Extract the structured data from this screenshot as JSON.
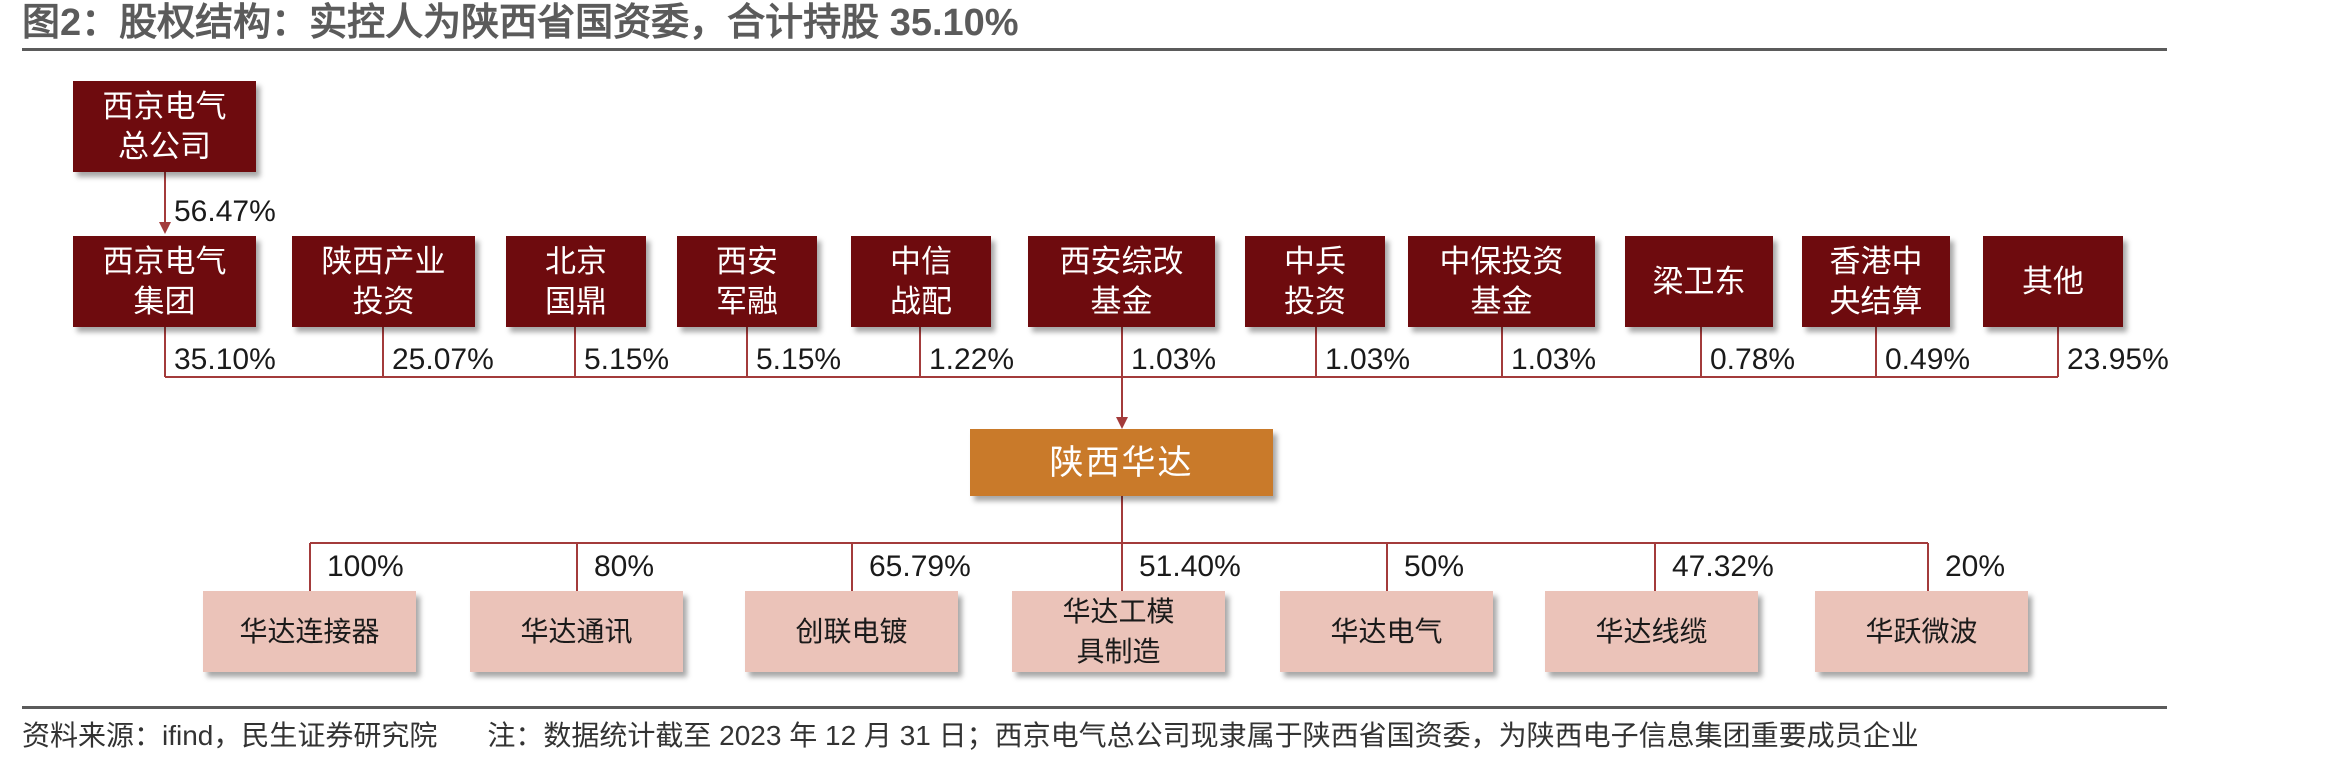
{
  "title": "图2：股权结构：实控人为陕西省国资委，合计持股 35.10%",
  "top_parent": {
    "line1": "西京电气",
    "line2": "总公司",
    "pct": "56.47%"
  },
  "shareholders": [
    {
      "line1": "西京电气",
      "line2": "集团",
      "pct": "35.10%"
    },
    {
      "line1": "陕西产业",
      "line2": "投资",
      "pct": "25.07%"
    },
    {
      "line1": "北京",
      "line2": "国鼎",
      "pct": "5.15%"
    },
    {
      "line1": "西安",
      "line2": "军融",
      "pct": "5.15%"
    },
    {
      "line1": "中信",
      "line2": "战配",
      "pct": "1.22%"
    },
    {
      "line1": "西安综改",
      "line2": "基金",
      "pct": "1.03%"
    },
    {
      "line1": "中兵",
      "line2": "投资",
      "pct": "1.03%"
    },
    {
      "line1": "中保投资",
      "line2": "基金",
      "pct": "1.03%"
    },
    {
      "line1": "梁卫东",
      "line2": "",
      "pct": "0.78%"
    },
    {
      "line1": "香港中",
      "line2": "央结算",
      "pct": "0.49%"
    },
    {
      "line1": "其他",
      "line2": "",
      "pct": "23.95%"
    }
  ],
  "company": "陕西华达",
  "subsidiaries": [
    {
      "line1": "华达连接器",
      "line2": "",
      "pct": "100%"
    },
    {
      "line1": "华达通讯",
      "line2": "",
      "pct": "80%"
    },
    {
      "line1": "创联电镀",
      "line2": "",
      "pct": "65.79%"
    },
    {
      "line1": "华达工模",
      "line2": "具制造",
      "pct": "51.40%"
    },
    {
      "line1": "华达电气",
      "line2": "",
      "pct": "50%"
    },
    {
      "line1": "华达线缆",
      "line2": "",
      "pct": "47.32%"
    },
    {
      "line1": "华跃微波",
      "line2": "",
      "pct": "20%"
    }
  ],
  "footer": {
    "source": "资料来源：ifind，民生证券研究院",
    "note": "注：数据统计截至 2023 年 12 月 31 日；西京电气总公司现隶属于陕西省国资委，为陕西电子信息集团重要成员企业"
  },
  "colors": {
    "shareholder_box": "#6e0b0e",
    "company_box": "#c97a2a",
    "subsidiary_box": "#ebc3b9",
    "connector": "#a33b3b",
    "rule": "#5b5b5b"
  }
}
